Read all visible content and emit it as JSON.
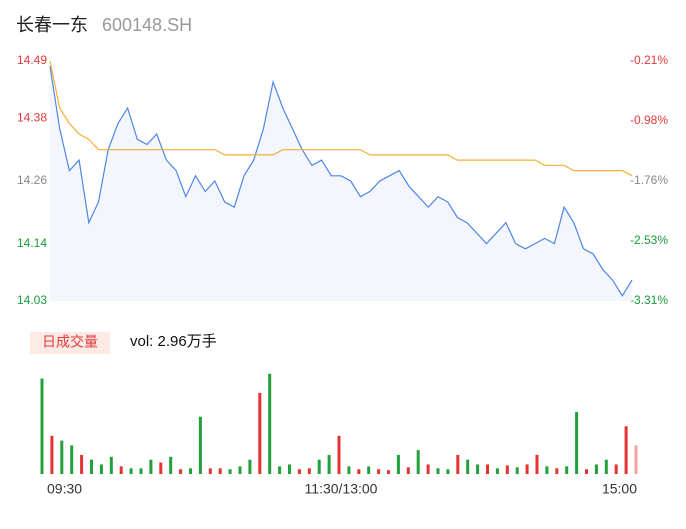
{
  "header": {
    "name": "长春一东",
    "code": "600148.SH"
  },
  "chart_data": [
    {
      "type": "line",
      "x": [
        0,
        4,
        8,
        12,
        16,
        20,
        24,
        28,
        32,
        36,
        40,
        44,
        48,
        52,
        56,
        60,
        64,
        68,
        72,
        76,
        80,
        84,
        88,
        92,
        96,
        100,
        104,
        108,
        112,
        116,
        120,
        124,
        128,
        132,
        136,
        140,
        144,
        148,
        152,
        156,
        160,
        164,
        168,
        172,
        176,
        180,
        184,
        188,
        192,
        196,
        200,
        204,
        208,
        212,
        216,
        220,
        224,
        228,
        232,
        236,
        240
      ],
      "xlim": [
        0,
        240
      ],
      "series": [
        {
          "color": "#4e86e4",
          "values": [
            14.48,
            14.36,
            14.28,
            14.3,
            14.18,
            14.22,
            14.32,
            14.37,
            14.4,
            14.34,
            14.33,
            14.35,
            14.3,
            14.28,
            14.23,
            14.27,
            14.24,
            14.26,
            14.22,
            14.21,
            14.27,
            14.3,
            14.36,
            14.45,
            14.4,
            14.36,
            14.32,
            14.29,
            14.3,
            14.27,
            14.27,
            14.26,
            14.23,
            14.24,
            14.26,
            14.27,
            14.28,
            14.25,
            14.23,
            14.21,
            14.23,
            14.22,
            14.19,
            14.18,
            14.16,
            14.14,
            14.16,
            14.18,
            14.14,
            14.13,
            14.14,
            14.15,
            14.14,
            14.21,
            14.18,
            14.13,
            14.12,
            14.09,
            14.07,
            14.04,
            14.07
          ]
        },
        {
          "color": "#f2b035",
          "values": [
            14.49,
            14.4,
            14.37,
            14.35,
            14.34,
            14.32,
            14.32,
            14.32,
            14.32,
            14.32,
            14.32,
            14.32,
            14.32,
            14.32,
            14.32,
            14.32,
            14.32,
            14.32,
            14.31,
            14.31,
            14.31,
            14.31,
            14.31,
            14.31,
            14.32,
            14.32,
            14.32,
            14.32,
            14.32,
            14.32,
            14.32,
            14.32,
            14.32,
            14.31,
            14.31,
            14.31,
            14.31,
            14.31,
            14.31,
            14.31,
            14.31,
            14.31,
            14.3,
            14.3,
            14.3,
            14.3,
            14.3,
            14.3,
            14.3,
            14.3,
            14.3,
            14.29,
            14.29,
            14.29,
            14.28,
            14.28,
            14.28,
            14.28,
            14.28,
            14.28,
            14.27
          ]
        }
      ],
      "fill": "#f3f6fc",
      "ylim": [
        14.03,
        14.49
      ],
      "yticks": [
        14.03,
        14.14,
        14.26,
        14.38,
        14.49
      ],
      "ytick_colors": [
        "#1a9a3a",
        "#1a9a3a",
        "#888888",
        "#e03a3a",
        "#e03a3a"
      ],
      "y2lim": [
        -3.31,
        -0.21
      ],
      "y2ticks": [
        {
          "value": -3.31,
          "label": "-3.31%"
        },
        {
          "value": -2.53,
          "label": "-2.53%"
        },
        {
          "value": -1.76,
          "label": "-1.76%"
        },
        {
          "value": -0.98,
          "label": "-0.98%"
        },
        {
          "value": -0.21,
          "label": "-0.21%"
        }
      ]
    },
    {
      "type": "bar",
      "title": "日成交量",
      "annotation": "vol: 2.96万手",
      "x": [
        0,
        4,
        8,
        12,
        16,
        20,
        24,
        28,
        32,
        36,
        40,
        44,
        48,
        52,
        56,
        60,
        64,
        68,
        72,
        76,
        80,
        84,
        88,
        92,
        96,
        100,
        104,
        108,
        112,
        116,
        120,
        124,
        128,
        132,
        136,
        140,
        144,
        148,
        152,
        156,
        160,
        164,
        168,
        172,
        176,
        180,
        184,
        188,
        192,
        196,
        200,
        204,
        208,
        212,
        216,
        220,
        224,
        228,
        232,
        236,
        240
      ],
      "xlim": [
        0,
        240
      ],
      "xticks": [
        {
          "value": 0,
          "label": "09:30"
        },
        {
          "value": 120,
          "label": "11:30/13:00"
        },
        {
          "value": 240,
          "label": "15:00"
        }
      ],
      "ylim": [
        0,
        1100
      ],
      "values": [
        1000,
        400,
        350,
        300,
        200,
        150,
        100,
        180,
        80,
        60,
        60,
        150,
        120,
        180,
        50,
        60,
        600,
        60,
        60,
        50,
        80,
        150,
        850,
        1050,
        80,
        100,
        50,
        60,
        150,
        200,
        400,
        80,
        50,
        80,
        50,
        40,
        200,
        70,
        250,
        100,
        60,
        50,
        200,
        150,
        100,
        100,
        60,
        90,
        70,
        100,
        200,
        80,
        60,
        80,
        650,
        50,
        100,
        150,
        100,
        500,
        300
      ],
      "colors": [
        "#21a03c",
        "#e63232",
        "#21a03c",
        "#21a03c",
        "#e63232",
        "#21a03c",
        "#21a03c",
        "#21a03c",
        "#e63232",
        "#21a03c",
        "#21a03c",
        "#21a03c",
        "#e63232",
        "#21a03c",
        "#e63232",
        "#21a03c",
        "#21a03c",
        "#e63232",
        "#e63232",
        "#21a03c",
        "#21a03c",
        "#21a03c",
        "#e63232",
        "#21a03c",
        "#21a03c",
        "#21a03c",
        "#e63232",
        "#e63232",
        "#21a03c",
        "#21a03c",
        "#e63232",
        "#21a03c",
        "#e63232",
        "#21a03c",
        "#e63232",
        "#e63232",
        "#21a03c",
        "#e63232",
        "#21a03c",
        "#e63232",
        "#21a03c",
        "#21a03c",
        "#e63232",
        "#21a03c",
        "#21a03c",
        "#e63232",
        "#21a03c",
        "#e63232",
        "#21a03c",
        "#e63232",
        "#e63232",
        "#21a03c",
        "#e63232",
        "#21a03c",
        "#21a03c",
        "#e63232",
        "#21a03c",
        "#21a03c",
        "#e63232",
        "#e63232",
        "#f2a0a0"
      ]
    }
  ]
}
